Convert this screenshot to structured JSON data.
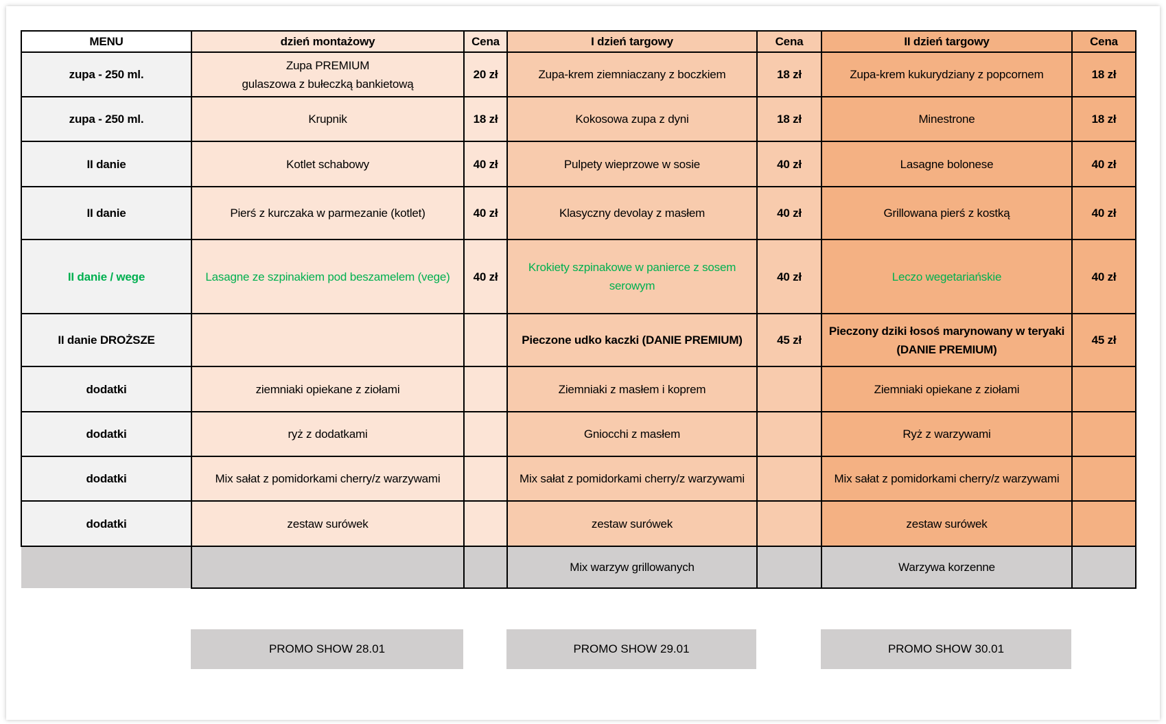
{
  "header": {
    "menu": "MENU",
    "day1": "dzień montażowy",
    "day2": "I dzień targowy",
    "day3": "II dzień targowy",
    "price": "Cena"
  },
  "colors": {
    "label_bg": "#F2F2F2",
    "day1_bg": "#FCE4D6",
    "day2_bg": "#F8CBAD",
    "day3_bg": "#F4B183",
    "extra_bg": "#D0CECE",
    "vege_text": "#00B050"
  },
  "rows": [
    {
      "label": "zupa - 250 ml.",
      "d1": "Zupa PREMIUM\ngulaszowa z bułeczką bankietową",
      "p1": "20 zł",
      "d2": "Zupa-krem ziemniaczany z boczkiem",
      "p2": "18 zł",
      "d3": "Zupa-krem kukurydziany z popcornem",
      "p3": "18 zł"
    },
    {
      "label": "zupa - 250 ml.",
      "d1": "Krupnik",
      "p1": "18 zł",
      "d2": "Kokosowa zupa z dyni",
      "p2": "18 zł",
      "d3": "Minestrone",
      "p3": "18 zł"
    },
    {
      "label": "II danie",
      "d1": "Kotlet schabowy",
      "p1": "40 zł",
      "d2": "Pulpety wieprzowe w sosie",
      "p2": "40 zł",
      "d3": "Lasagne bolonese",
      "p3": "40 zł"
    },
    {
      "label": "II danie",
      "d1": "Pierś z kurczaka w parmezanie (kotlet)",
      "p1": "40 zł",
      "d2": "Klasyczny devolay z masłem",
      "p2": "40 zł",
      "d3": "Grillowana pierś z kostką",
      "p3": "40 zł"
    },
    {
      "label": "II danie / wege",
      "vege": true,
      "d1": "Lasagne ze szpinakiem pod beszamelem (vege)",
      "p1": "40 zł",
      "d2": "Krokiety szpinakowe w panierce z sosem serowym",
      "p2": "40 zł",
      "d3": "Leczo wegetariańskie",
      "p3": "40 zł"
    },
    {
      "label": "II danie DROŻSZE",
      "premium": true,
      "d1": "",
      "p1": "",
      "d2": "Pieczone udko kaczki  (DANIE PREMIUM)",
      "p2": "45 zł",
      "d3": "Pieczony dziki łosoś marynowany w teryaki (DANIE PREMIUM)",
      "p3": "45 zł"
    },
    {
      "label": "dodatki",
      "d1": "ziemniaki opiekane z ziołami",
      "p1": "",
      "d2": "Ziemniaki z masłem i koprem",
      "p2": "",
      "d3": "Ziemniaki opiekane z ziołami",
      "p3": ""
    },
    {
      "label": "dodatki",
      "d1": "ryż z dodatkami",
      "p1": "",
      "d2": "Gniocchi z masłem",
      "p2": "",
      "d3": "Ryż z warzywami",
      "p3": ""
    },
    {
      "label": "dodatki",
      "d1": "Mix sałat z pomidorkami cherry/z warzywami",
      "p1": "",
      "d2": "Mix sałat z pomidorkami cherry/z warzywami",
      "p2": "",
      "d3": "Mix sałat z pomidorkami cherry/z warzywami",
      "p3": ""
    },
    {
      "label": "dodatki",
      "d1": "zestaw surówek",
      "p1": "",
      "d2": "zestaw surówek",
      "p2": "",
      "d3": "zestaw surówek",
      "p3": ""
    }
  ],
  "extra_row": {
    "d1": "",
    "d2": "Mix warzyw grillowanych",
    "d3": "Warzywa korzenne"
  },
  "promo": [
    "PROMO SHOW 28.01",
    "PROMO SHOW 29.01",
    "PROMO SHOW 30.01"
  ]
}
